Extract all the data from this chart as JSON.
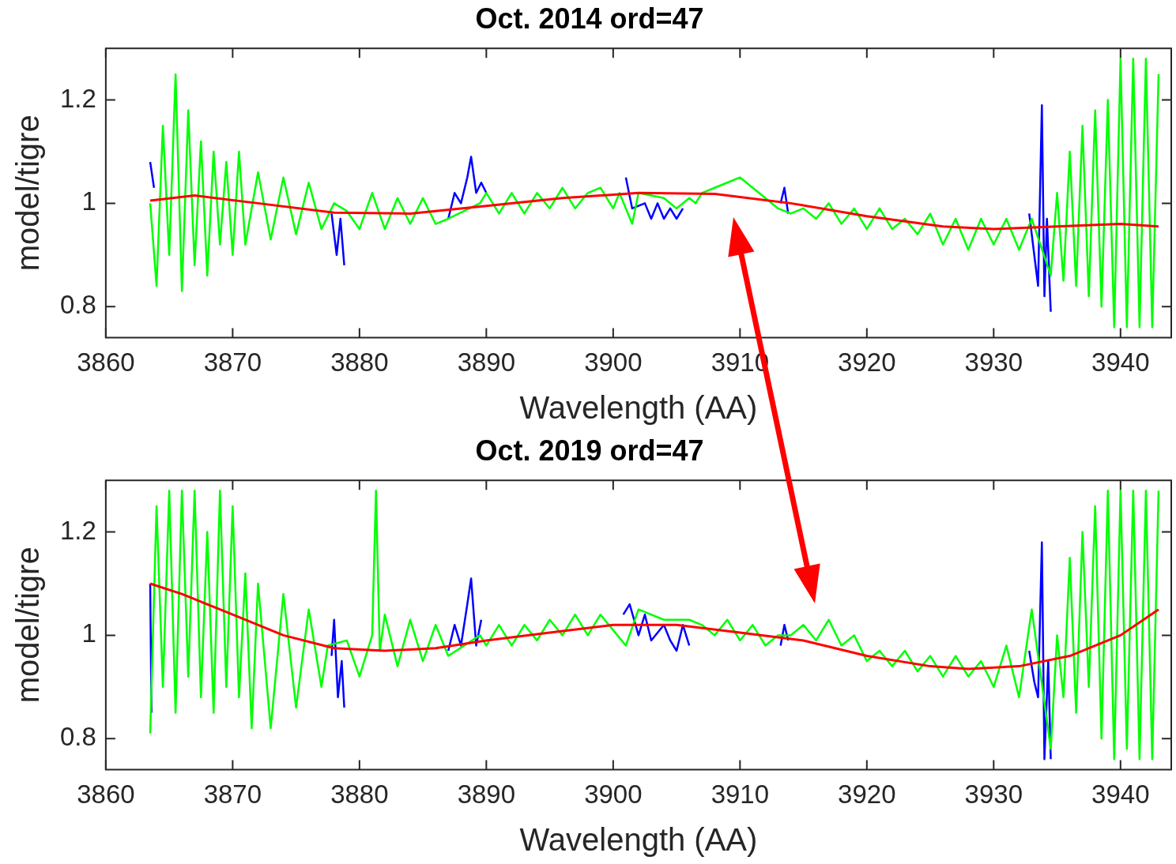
{
  "chart_data": [
    {
      "type": "line",
      "title": "Oct. 2014 ord=47",
      "xlabel": "Wavelength (AA)",
      "ylabel": "model/tigre",
      "xlim": [
        3860,
        3944
      ],
      "xticks": [
        3860,
        3870,
        3880,
        3890,
        3900,
        3910,
        3920,
        3930,
        3940
      ],
      "ylim": [
        0.74,
        1.3
      ],
      "yticks": [
        0.8,
        1,
        1.2
      ],
      "grid": false,
      "series": [
        {
          "color": "#0000ff",
          "x": [
            3863.5,
            3863.8,
            3870,
            3877.8,
            3878.2,
            3878.5,
            3878.8,
            3883,
            3887,
            3887.5,
            3888,
            3888.5,
            3888.8,
            3889.2,
            3889.6,
            3890,
            3895,
            3901,
            3901.5,
            3902.5,
            3903,
            3903.5,
            3904,
            3904.5,
            3905,
            3905.5,
            3910,
            3913.2,
            3913.5,
            3913.8,
            3920,
            3932.8,
            3933.2,
            3933.5,
            3933.8,
            3934,
            3934.2,
            3934.5
          ],
          "values": [
            1.08,
            1.03,
            null,
            0.98,
            0.9,
            0.97,
            0.88,
            null,
            0.97,
            1.02,
            1.0,
            1.05,
            1.09,
            1.02,
            1.04,
            1.02,
            null,
            1.05,
            0.99,
            1.0,
            0.97,
            1.0,
            0.97,
            0.99,
            0.97,
            0.99,
            null,
            1.0,
            1.03,
            0.98,
            null,
            0.98,
            0.9,
            0.84,
            1.19,
            0.82,
            0.97,
            0.79
          ]
        },
        {
          "color": "#00ff00",
          "x": [
            3863.5,
            3864,
            3864.5,
            3865,
            3865.5,
            3866,
            3866.5,
            3867,
            3867.5,
            3868,
            3868.5,
            3869,
            3869.5,
            3870,
            3870.5,
            3871,
            3872,
            3873,
            3874,
            3875,
            3876,
            3877,
            3878,
            3879,
            3880,
            3881,
            3882,
            3883,
            3884,
            3885,
            3886,
            3887,
            3889.5,
            3890,
            3891,
            3892,
            3893,
            3894,
            3895,
            3896,
            3897,
            3898,
            3899,
            3900,
            3900.5,
            3901.5,
            3902,
            3904,
            3905,
            3906,
            3906.5,
            3907,
            3908,
            3909,
            3910,
            3911,
            3912,
            3913,
            3914,
            3915,
            3916,
            3917,
            3918,
            3919,
            3920,
            3921,
            3922,
            3923,
            3924,
            3925,
            3926,
            3927,
            3928,
            3929,
            3930,
            3931,
            3932,
            3933,
            3934.5,
            3935,
            3935.5,
            3936,
            3936.5,
            3937,
            3937.5,
            3938,
            3938.5,
            3939,
            3939.5,
            3940,
            3940.5,
            3941,
            3941.5,
            3942,
            3942.5,
            3943
          ],
          "values": [
            1.0,
            0.84,
            1.15,
            0.9,
            1.25,
            0.83,
            1.18,
            0.88,
            1.12,
            0.86,
            1.1,
            0.92,
            1.08,
            0.9,
            1.1,
            0.92,
            1.06,
            0.93,
            1.05,
            0.94,
            1.04,
            0.95,
            1.0,
            0.985,
            0.95,
            1.02,
            0.95,
            1.01,
            0.96,
            1.01,
            0.96,
            0.97,
            1.0,
            1.02,
            0.98,
            1.02,
            0.98,
            1.02,
            0.99,
            1.03,
            0.99,
            1.02,
            1.03,
            0.99,
            1.02,
            0.96,
            1.02,
            1.01,
            0.99,
            1.01,
            1.0,
            1.02,
            1.03,
            1.04,
            1.05,
            1.03,
            1.01,
            0.99,
            0.98,
            0.99,
            0.97,
            1.0,
            0.96,
            0.99,
            0.95,
            0.99,
            0.95,
            0.97,
            0.94,
            0.98,
            0.92,
            0.97,
            0.91,
            0.97,
            0.92,
            0.97,
            0.91,
            0.97,
            0.86,
            1.02,
            0.85,
            1.1,
            0.84,
            1.15,
            0.82,
            1.18,
            0.8,
            1.2,
            0.76,
            1.28,
            0.76,
            1.28,
            0.76,
            1.28,
            0.76,
            1.25
          ]
        },
        {
          "color": "#ff0000",
          "x": [
            3863.5,
            3867,
            3872,
            3878,
            3884,
            3890,
            3896,
            3902,
            3908,
            3914,
            3920,
            3926,
            3930,
            3935,
            3940,
            3943
          ],
          "values": [
            1.005,
            1.015,
            1.0,
            0.982,
            0.98,
            0.995,
            1.01,
            1.02,
            1.018,
            1.0,
            0.975,
            0.955,
            0.95,
            0.955,
            0.96,
            0.955
          ]
        }
      ]
    },
    {
      "type": "line",
      "title": "Oct. 2019 ord=47",
      "xlabel": "Wavelength (AA)",
      "ylabel": "model/tigre",
      "xlim": [
        3860,
        3944
      ],
      "xticks": [
        3860,
        3870,
        3880,
        3890,
        3900,
        3910,
        3920,
        3930,
        3940
      ],
      "ylim": [
        0.74,
        1.3
      ],
      "yticks": [
        0.8,
        1,
        1.2
      ],
      "grid": false,
      "series": [
        {
          "color": "#0000ff",
          "x": [
            3863.5,
            3863.6,
            3870,
            3877.8,
            3878,
            3878.3,
            3878.6,
            3878.8,
            3883,
            3887,
            3887.5,
            3888,
            3888.5,
            3888.8,
            3889.2,
            3889.6,
            3895,
            3900.8,
            3901.3,
            3902,
            3902.5,
            3903,
            3904,
            3904.5,
            3905,
            3905.5,
            3906,
            3910,
            3913.2,
            3913.5,
            3913.8,
            3920,
            3932.8,
            3933.2,
            3933.5,
            3933.8,
            3934,
            3934.3,
            3934.5
          ],
          "values": [
            1.1,
            0.85,
            null,
            0.96,
            1.03,
            0.88,
            0.95,
            0.86,
            null,
            0.97,
            1.02,
            0.98,
            1.06,
            1.11,
            0.98,
            1.03,
            null,
            1.04,
            1.06,
            1.0,
            1.04,
            0.99,
            1.02,
            0.99,
            0.97,
            1.02,
            0.98,
            null,
            0.98,
            1.02,
            0.99,
            null,
            0.97,
            0.91,
            0.88,
            1.18,
            0.76,
            0.95,
            0.76
          ]
        },
        {
          "color": "#00ff00",
          "x": [
            3863.5,
            3864,
            3864.5,
            3865,
            3865.5,
            3866,
            3866.5,
            3867,
            3867.5,
            3868,
            3868.5,
            3869,
            3869.5,
            3870,
            3870.5,
            3871,
            3871.5,
            3872,
            3873,
            3874,
            3875,
            3876,
            3877,
            3877.5,
            3879,
            3880,
            3881,
            3881.3,
            3881.6,
            3882,
            3883,
            3884,
            3885,
            3886,
            3887,
            3889.5,
            3890,
            3891,
            3892,
            3893,
            3894,
            3895,
            3896,
            3897,
            3898,
            3899,
            3900,
            3901,
            3902,
            3904,
            3906,
            3907,
            3908,
            3909,
            3910,
            3911,
            3912,
            3913,
            3914,
            3915,
            3916,
            3917,
            3918,
            3919,
            3920,
            3921,
            3922,
            3923,
            3924,
            3925,
            3926,
            3927,
            3928,
            3929,
            3930,
            3931,
            3932,
            3933,
            3934.5,
            3935,
            3935.5,
            3936,
            3936.5,
            3937,
            3937.5,
            3938,
            3938.5,
            3939,
            3939.5,
            3940,
            3940.5,
            3941,
            3941.5,
            3942,
            3942.5,
            3943
          ],
          "values": [
            0.81,
            1.25,
            0.9,
            1.28,
            0.85,
            1.28,
            0.92,
            1.28,
            0.88,
            1.2,
            0.85,
            1.28,
            0.9,
            1.25,
            0.88,
            1.12,
            0.82,
            1.1,
            0.82,
            1.08,
            0.86,
            1.05,
            0.9,
            0.98,
            0.99,
            0.92,
            1.0,
            1.28,
            0.97,
            1.04,
            0.94,
            1.03,
            0.95,
            1.02,
            0.96,
            1.0,
            0.98,
            1.02,
            0.98,
            1.02,
            0.99,
            1.03,
            1.0,
            1.04,
            1.0,
            1.04,
            1.01,
            0.98,
            1.05,
            1.03,
            1.03,
            1.02,
            1.0,
            1.03,
            0.99,
            1.02,
            0.98,
            1.0,
            1.0,
            1.02,
            0.99,
            1.03,
            0.98,
            1.0,
            0.95,
            0.97,
            0.94,
            0.97,
            0.93,
            0.96,
            0.92,
            0.96,
            0.92,
            0.95,
            0.9,
            0.98,
            0.88,
            1.05,
            0.78,
            1.0,
            0.88,
            1.15,
            0.85,
            1.2,
            0.9,
            1.25,
            0.8,
            1.28,
            0.76,
            1.28,
            0.78,
            1.28,
            0.76,
            1.28,
            0.76,
            1.28
          ]
        },
        {
          "color": "#ff0000",
          "x": [
            3863.5,
            3866,
            3870,
            3874,
            3878,
            3882,
            3886,
            3890,
            3895,
            3900,
            3905,
            3910,
            3915,
            3920,
            3925,
            3928,
            3932,
            3936,
            3940,
            3943
          ],
          "values": [
            1.1,
            1.08,
            1.04,
            1.0,
            0.975,
            0.97,
            0.975,
            0.99,
            1.005,
            1.02,
            1.02,
            1.005,
            0.99,
            0.96,
            0.94,
            0.935,
            0.94,
            0.96,
            1.0,
            1.05
          ]
        }
      ]
    }
  ]
}
